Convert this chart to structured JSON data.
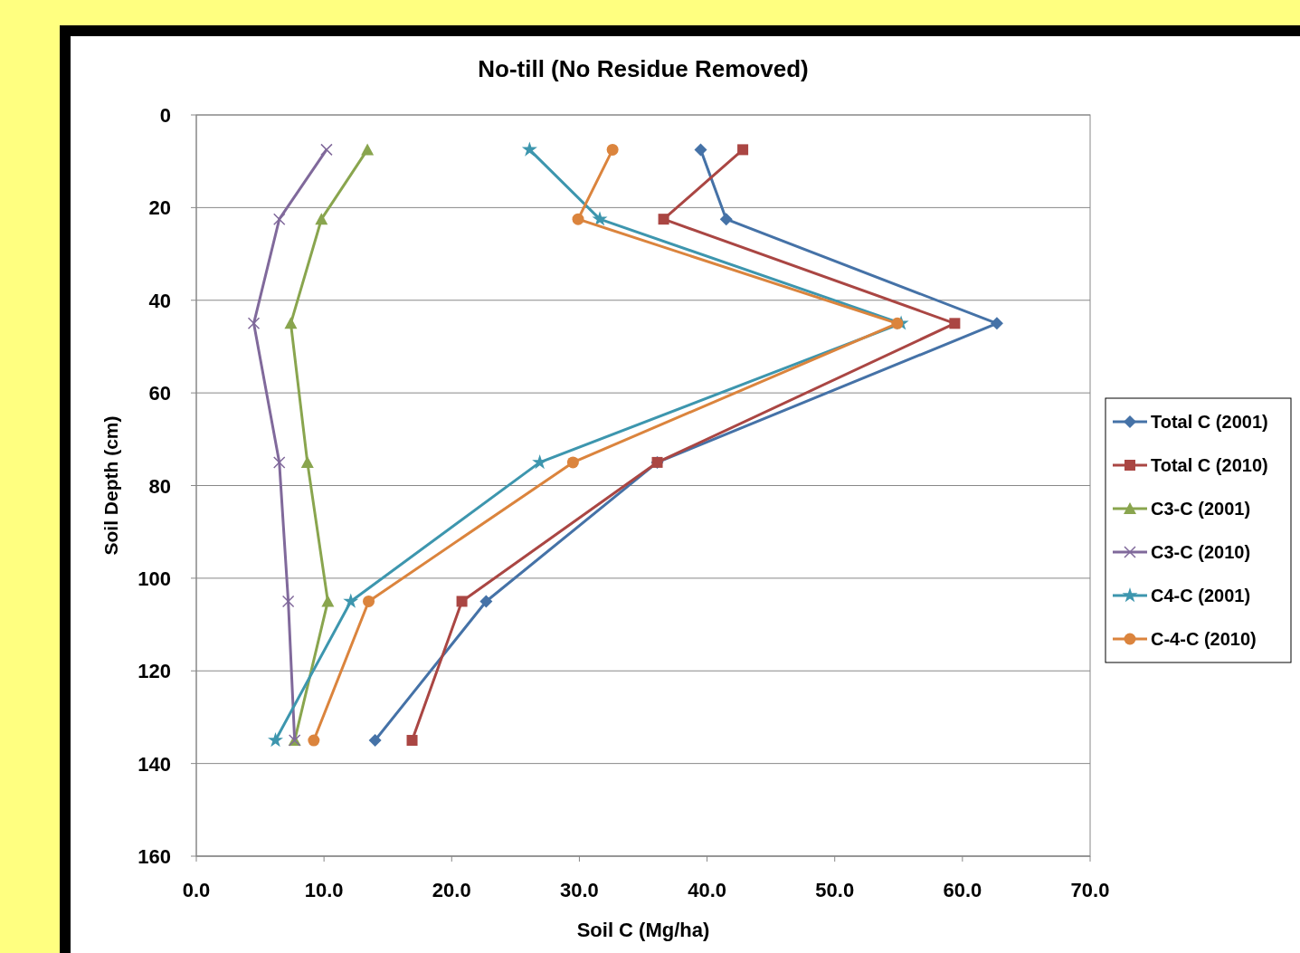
{
  "chart_data": {
    "type": "line",
    "title": "No-till (No Residue Removed)",
    "xlabel": "Soil C (Mg/ha)",
    "ylabel": "Soil Depth (cm)",
    "xlim": [
      0,
      70
    ],
    "xticks": [
      {
        "value": 0,
        "label": "0.0"
      },
      {
        "value": 10,
        "label": "10.0"
      },
      {
        "value": 20,
        "label": "20.0"
      },
      {
        "value": 30,
        "label": "30.0"
      },
      {
        "value": 40,
        "label": "40.0"
      },
      {
        "value": 50,
        "label": "50.0"
      },
      {
        "value": 60,
        "label": "60.0"
      },
      {
        "value": 70,
        "label": "70.0"
      }
    ],
    "ylim": [
      160,
      0
    ],
    "yticks": [
      0,
      20,
      40,
      60,
      80,
      100,
      120,
      140,
      160
    ],
    "grid": "y",
    "legend": "right",
    "series": [
      {
        "name": "Total C (2001)",
        "color": "#4572a7",
        "marker": "diamond",
        "x": [
          39.5,
          41.5,
          62.7,
          36.1,
          22.7,
          14.0
        ],
        "values": [
          7.5,
          22.5,
          45,
          75,
          105,
          135
        ]
      },
      {
        "name": "Total C (2010)",
        "color": "#aa4643",
        "marker": "square",
        "x": [
          42.8,
          36.6,
          59.4,
          36.1,
          20.8,
          16.9
        ],
        "values": [
          7.5,
          22.5,
          45,
          75,
          105,
          135
        ]
      },
      {
        "name": "C3-C (2001)",
        "color": "#89a54e",
        "marker": "triangle",
        "x": [
          13.4,
          9.8,
          7.4,
          8.7,
          10.3,
          7.7
        ],
        "values": [
          7.5,
          22.5,
          45,
          75,
          105,
          135
        ]
      },
      {
        "name": "C3-C (2010)",
        "color": "#80699b",
        "marker": "cross",
        "x": [
          10.2,
          6.5,
          4.5,
          6.5,
          7.2,
          7.7
        ],
        "values": [
          7.5,
          22.5,
          45,
          75,
          105,
          135
        ]
      },
      {
        "name": "C4-C (2001)",
        "color": "#3d96ae",
        "marker": "star",
        "x": [
          26.1,
          31.6,
          55.2,
          26.9,
          12.1,
          6.2
        ],
        "values": [
          7.5,
          22.5,
          45,
          75,
          105,
          135
        ]
      },
      {
        "name": "C-4-C (2010)",
        "color": "#db843d",
        "marker": "circle",
        "x": [
          32.6,
          29.9,
          54.9,
          29.5,
          13.5,
          9.2
        ],
        "values": [
          7.5,
          22.5,
          45,
          75,
          105,
          135
        ]
      }
    ]
  }
}
